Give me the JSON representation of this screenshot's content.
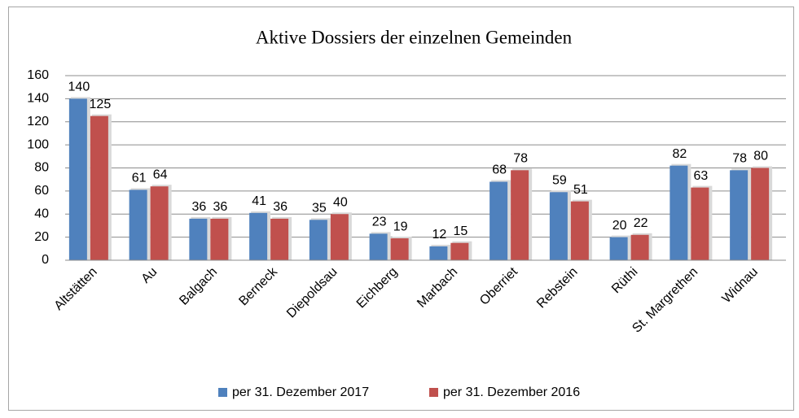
{
  "chart_data": {
    "type": "bar",
    "title": "Aktive Dossiers der einzelnen Gemeinden",
    "categories": [
      "Altstätten",
      "Au",
      "Balgach",
      "Berneck",
      "Diepoldsau",
      "Eichberg",
      "Marbach",
      "Oberriet",
      "Rebstein",
      "Rüthi",
      "St. Margrethen",
      "Widnau"
    ],
    "series": [
      {
        "name": "per 31. Dezember 2017",
        "color": "#4f81bd",
        "values": [
          140,
          61,
          36,
          41,
          35,
          23,
          12,
          68,
          59,
          20,
          82,
          78
        ]
      },
      {
        "name": "per 31. Dezember 2016",
        "color": "#c0504d",
        "values": [
          125,
          64,
          36,
          36,
          40,
          19,
          15,
          78,
          51,
          22,
          63,
          80
        ]
      }
    ],
    "ylim": [
      0,
      160
    ],
    "yticks": [
      0,
      20,
      40,
      60,
      80,
      100,
      120,
      140,
      160
    ],
    "grid": true,
    "legend": "bottom"
  }
}
